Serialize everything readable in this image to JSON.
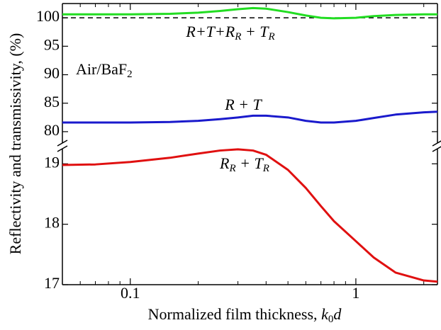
{
  "chart_data": {
    "type": "line",
    "y_label": "Reflectivity and transmissivity, (%)",
    "x_label": [
      "Normalized film thickness, ",
      "k",
      "0",
      "d"
    ],
    "x": [
      0.05,
      0.07,
      0.1,
      0.15,
      0.2,
      0.25,
      0.3,
      0.35,
      0.4,
      0.5,
      0.6,
      0.7,
      0.8,
      1,
      1.2,
      1.5,
      2,
      2.3
    ],
    "xlim": [
      0.05,
      2.3
    ],
    "xticks": [
      0.1,
      1
    ],
    "xminorticks": [
      0.05,
      0.06,
      0.07,
      0.08,
      0.09,
      0.2,
      0.3,
      0.4,
      0.5,
      0.6,
      0.7,
      0.8,
      0.9,
      2
    ],
    "log_x": true,
    "panels": [
      {
        "ylim": [
          78,
          102.5
        ],
        "yticks": [
          80,
          85,
          90,
          95,
          100
        ],
        "reference_line": 100,
        "series": [
          {
            "color": "#22dd22",
            "values": [
              100.6,
              100.6,
              100.6,
              100.7,
              100.9,
              101.2,
              101.5,
              101.7,
              101.6,
              101.0,
              100.4,
              100.0,
              99.9,
              100.0,
              100.3,
              100.5,
              100.6,
              100.6
            ]
          },
          {
            "color": "#1a1acc",
            "values": [
              81.6,
              81.6,
              81.6,
              81.7,
              81.9,
              82.2,
              82.5,
              82.8,
              82.8,
              82.5,
              81.9,
              81.6,
              81.6,
              81.9,
              82.4,
              83.0,
              83.4,
              83.5
            ]
          }
        ]
      },
      {
        "ylim": [
          17,
          19.25
        ],
        "yticks": [
          17,
          18,
          19
        ],
        "series": [
          {
            "color": "#e01010",
            "values": [
              18.98,
              18.99,
              19.03,
              19.1,
              19.17,
              19.22,
              19.24,
              19.22,
              19.15,
              18.9,
              18.6,
              18.3,
              18.05,
              17.72,
              17.45,
              17.2,
              17.07,
              17.05
            ]
          }
        ]
      }
    ],
    "annotations": [
      {
        "parts": [
          "R+T+R",
          "R",
          " + T",
          "R"
        ]
      },
      {
        "parts": [
          "R + T"
        ]
      },
      {
        "parts": [
          "R",
          "R",
          " + T",
          "R"
        ]
      }
    ],
    "sample_label": [
      "Air/BaF",
      "2"
    ]
  }
}
